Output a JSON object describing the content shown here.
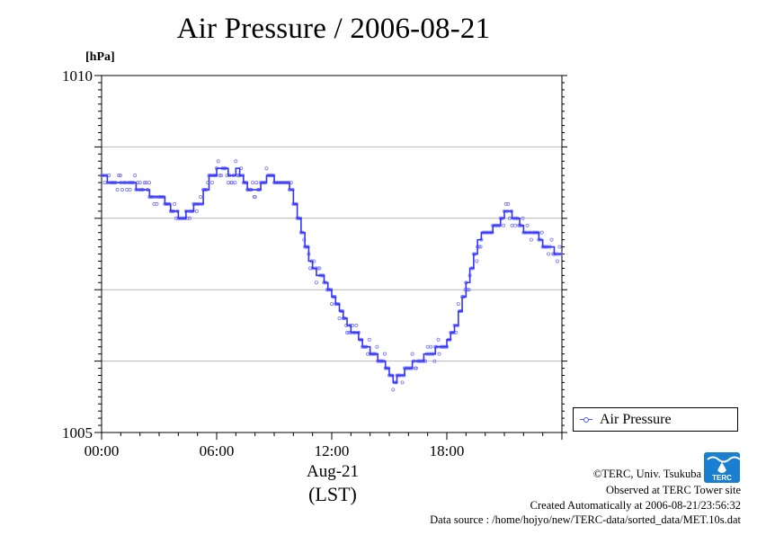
{
  "title": "Air Pressure / 2006-08-21",
  "unit_label": "[hPa]",
  "x_date_label": "Aug-21",
  "x_timezone_label": "(LST)",
  "legend_label": "Air Pressure",
  "credits": {
    "copyright": "©TERC, Univ. Tsukuba",
    "observed": "Observed at TERC Tower site",
    "created": "Created Automatically at 2006-08-21/23:56:32",
    "source": "Data source : /home/hojyo/new/TERC-data/sorted_data/MET.10s.dat"
  },
  "logo_text": "TERC",
  "colors": {
    "series": "#3333ff",
    "points": "#7777ff",
    "grid": "#b8b8b8",
    "logo": "#1a7fd0"
  },
  "chart_data": {
    "type": "line",
    "title": "Air Pressure / 2006-08-21",
    "ylabel": "[hPa]",
    "xlabel": "Aug-21 (LST)",
    "ylim": [
      1005,
      1010
    ],
    "y_ticks": [
      "1005",
      "1010"
    ],
    "y_gridlines": [
      1006,
      1007,
      1008,
      1009
    ],
    "xlim": [
      0,
      24
    ],
    "x_ticks": [
      {
        "hour": 0,
        "label": "00:00"
      },
      {
        "hour": 6,
        "label": "06:00"
      },
      {
        "hour": 12,
        "label": "12:00"
      },
      {
        "hour": 18,
        "label": "18:00"
      }
    ],
    "legend": "right",
    "series": [
      {
        "name": "Air Pressure",
        "x": [
          0,
          0.3,
          0.5,
          1.0,
          1.5,
          1.8,
          2.0,
          2.5,
          2.8,
          3.0,
          3.3,
          3.6,
          3.8,
          4.0,
          4.2,
          4.4,
          4.6,
          4.8,
          5.0,
          5.3,
          5.6,
          5.8,
          6.0,
          6.3,
          6.6,
          6.8,
          7.0,
          7.2,
          7.4,
          7.6,
          7.8,
          8.0,
          8.3,
          8.6,
          8.8,
          9.0,
          9.3,
          9.6,
          9.8,
          10.0,
          10.2,
          10.4,
          10.6,
          10.8,
          11.0,
          11.2,
          11.4,
          11.6,
          11.8,
          12.0,
          12.2,
          12.4,
          12.6,
          12.8,
          13.0,
          13.2,
          13.4,
          13.6,
          13.8,
          14.0,
          14.2,
          14.4,
          14.6,
          14.8,
          15.0,
          15.2,
          15.4,
          15.6,
          15.8,
          16.0,
          16.2,
          16.4,
          16.6,
          16.8,
          17.0,
          17.2,
          17.4,
          17.6,
          17.8,
          18.0,
          18.2,
          18.4,
          18.6,
          18.8,
          19.0,
          19.2,
          19.4,
          19.6,
          19.8,
          20.0,
          20.2,
          20.4,
          20.6,
          20.8,
          21.0,
          21.2,
          21.4,
          21.6,
          21.8,
          22.0,
          22.2,
          22.4,
          22.6,
          22.8,
          23.0,
          23.3,
          23.6,
          23.8
        ],
        "values": [
          1008.6,
          1008.5,
          1008.5,
          1008.5,
          1008.5,
          1008.4,
          1008.4,
          1008.3,
          1008.3,
          1008.3,
          1008.2,
          1008.1,
          1008.1,
          1008.0,
          1008.0,
          1008.1,
          1008.1,
          1008.2,
          1008.2,
          1008.4,
          1008.6,
          1008.6,
          1008.7,
          1008.7,
          1008.6,
          1008.6,
          1008.7,
          1008.6,
          1008.5,
          1008.4,
          1008.4,
          1008.4,
          1008.5,
          1008.6,
          1008.6,
          1008.5,
          1008.5,
          1008.5,
          1008.4,
          1008.2,
          1008.0,
          1007.8,
          1007.6,
          1007.4,
          1007.3,
          1007.2,
          1007.2,
          1007.1,
          1007.0,
          1006.9,
          1006.8,
          1006.7,
          1006.6,
          1006.5,
          1006.4,
          1006.4,
          1006.3,
          1006.2,
          1006.2,
          1006.1,
          1006.1,
          1006.0,
          1006.0,
          1005.9,
          1005.8,
          1005.7,
          1005.8,
          1005.8,
          1005.9,
          1005.9,
          1006.0,
          1006.0,
          1006.0,
          1006.1,
          1006.1,
          1006.1,
          1006.2,
          1006.2,
          1006.2,
          1006.3,
          1006.4,
          1006.5,
          1006.7,
          1006.9,
          1007.1,
          1007.3,
          1007.5,
          1007.7,
          1007.8,
          1007.8,
          1007.8,
          1007.9,
          1007.9,
          1008.0,
          1008.1,
          1008.1,
          1008.0,
          1008.0,
          1007.9,
          1007.8,
          1007.8,
          1007.8,
          1007.8,
          1007.7,
          1007.6,
          1007.6,
          1007.5,
          1007.5
        ]
      }
    ]
  }
}
